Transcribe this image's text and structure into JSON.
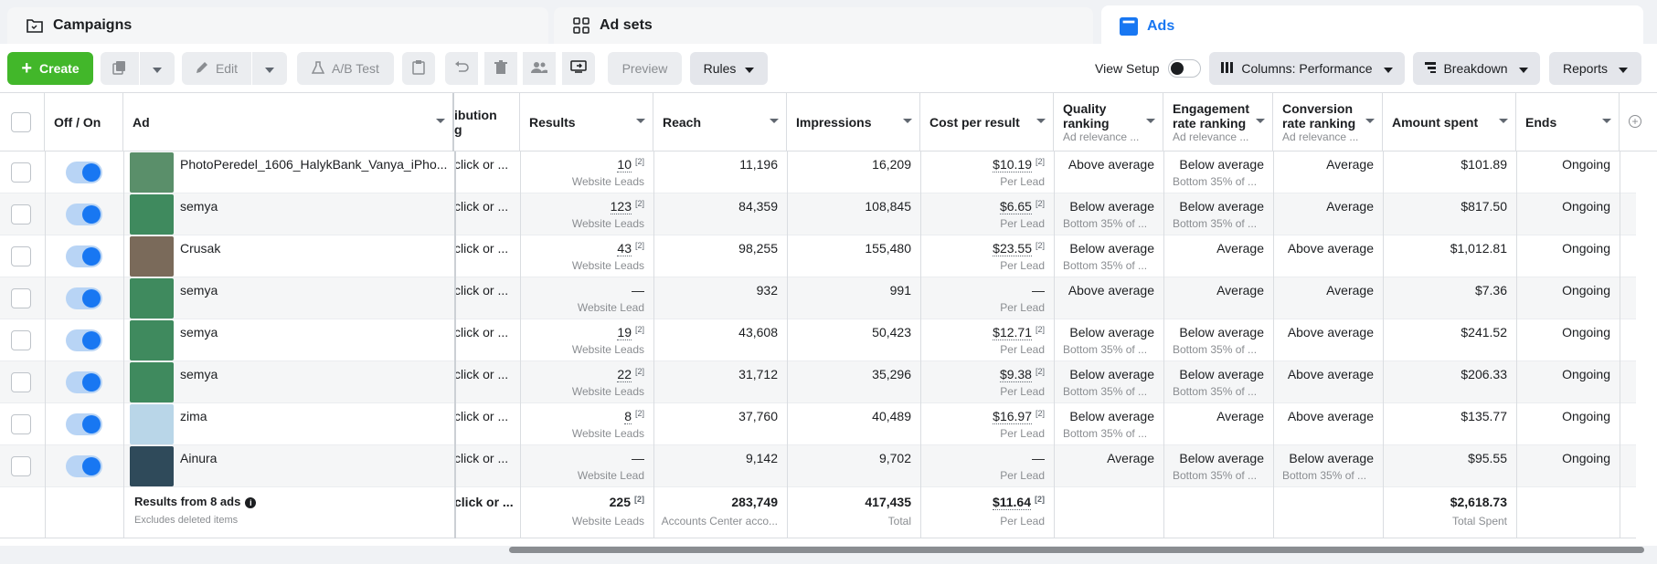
{
  "tabs": [
    {
      "label": "Campaigns",
      "icon": "folder-icon"
    },
    {
      "label": "Ad sets",
      "icon": "grid-icon"
    },
    {
      "label": "Ads",
      "icon": "ad-icon"
    }
  ],
  "toolbar": {
    "create": "Create",
    "edit": "Edit",
    "ab_test": "A/B Test",
    "preview": "Preview",
    "rules": "Rules",
    "view_setup": "View Setup",
    "columns": "Columns: Performance",
    "breakdown": "Breakdown",
    "reports": "Reports"
  },
  "headers": {
    "off_on": "Off / On",
    "ad": "Ad",
    "attribution_1": "ibution",
    "attribution_2": "g",
    "results": "Results",
    "reach": "Reach",
    "impressions": "Impressions",
    "cost": "Cost per result",
    "quality_1": "Quality",
    "quality_2": "ranking",
    "quality_sub": "Ad relevance ...",
    "engagement_1": "Engagement",
    "engagement_2": "rate ranking",
    "engagement_sub": "Ad relevance ...",
    "conversion_1": "Conversion",
    "conversion_2": "rate ranking",
    "conversion_sub": "Ad relevance ...",
    "amount": "Amount spent",
    "ends": "Ends"
  },
  "rows": [
    {
      "name": "PhotoPeredel_1606_HalykBank_Vanya_iPho...",
      "attribution": "click or ...",
      "results": "10",
      "results_sub": "Website Leads",
      "reach": "11,196",
      "impressions": "16,209",
      "cost": "$10.19",
      "cost_sub": "Per Lead",
      "quality": "Above average",
      "quality_sub": "",
      "engagement": "Below average",
      "engagement_sub": "Bottom 35% of ...",
      "conversion": "Average",
      "conversion_sub": "",
      "amount": "$101.89",
      "ends": "Ongoing",
      "thumb": "#5a8f6a"
    },
    {
      "name": "semya",
      "attribution": "click or ...",
      "results": "123",
      "results_sub": "Website Leads",
      "reach": "84,359",
      "impressions": "108,845",
      "cost": "$6.65",
      "cost_sub": "Per Lead",
      "quality": "Below average",
      "quality_sub": "Bottom 35% of ...",
      "engagement": "Below average",
      "engagement_sub": "Bottom 35% of ...",
      "conversion": "Average",
      "conversion_sub": "",
      "amount": "$817.50",
      "ends": "Ongoing",
      "thumb": "#3f8a5e"
    },
    {
      "name": "Crusak",
      "attribution": "click or ...",
      "results": "43",
      "results_sub": "Website Leads",
      "reach": "98,255",
      "impressions": "155,480",
      "cost": "$23.55",
      "cost_sub": "Per Lead",
      "quality": "Below average",
      "quality_sub": "Bottom 35% of ...",
      "engagement": "Average",
      "engagement_sub": "",
      "conversion": "Above average",
      "conversion_sub": "",
      "amount": "$1,012.81",
      "ends": "Ongoing",
      "thumb": "#7a6a5a"
    },
    {
      "name": "semya",
      "attribution": "click or ...",
      "results": "—",
      "results_sub": "Website Lead",
      "reach": "932",
      "impressions": "991",
      "cost": "—",
      "cost_sub": "Per Lead",
      "quality": "Above average",
      "quality_sub": "",
      "engagement": "Average",
      "engagement_sub": "",
      "conversion": "Average",
      "conversion_sub": "",
      "amount": "$7.36",
      "ends": "Ongoing",
      "thumb": "#3f8a5e"
    },
    {
      "name": "semya",
      "attribution": "click or ...",
      "results": "19",
      "results_sub": "Website Leads",
      "reach": "43,608",
      "impressions": "50,423",
      "cost": "$12.71",
      "cost_sub": "Per Lead",
      "quality": "Below average",
      "quality_sub": "Bottom 35% of ...",
      "engagement": "Below average",
      "engagement_sub": "Bottom 35% of ...",
      "conversion": "Above average",
      "conversion_sub": "",
      "amount": "$241.52",
      "ends": "Ongoing",
      "thumb": "#3f8a5e"
    },
    {
      "name": "semya",
      "attribution": "click or ...",
      "results": "22",
      "results_sub": "Website Leads",
      "reach": "31,712",
      "impressions": "35,296",
      "cost": "$9.38",
      "cost_sub": "Per Lead",
      "quality": "Below average",
      "quality_sub": "Bottom 35% of ...",
      "engagement": "Below average",
      "engagement_sub": "Bottom 35% of ...",
      "conversion": "Above average",
      "conversion_sub": "",
      "amount": "$206.33",
      "ends": "Ongoing",
      "thumb": "#3f8a5e"
    },
    {
      "name": "zima",
      "attribution": "click or ...",
      "results": "8",
      "results_sub": "Website Leads",
      "reach": "37,760",
      "impressions": "40,489",
      "cost": "$16.97",
      "cost_sub": "Per Lead",
      "quality": "Below average",
      "quality_sub": "Bottom 35% of ...",
      "engagement": "Average",
      "engagement_sub": "",
      "conversion": "Above average",
      "conversion_sub": "",
      "amount": "$135.77",
      "ends": "Ongoing",
      "thumb": "#b9d6e8"
    },
    {
      "name": "Ainura",
      "attribution": "click or ...",
      "results": "—",
      "results_sub": "Website Lead",
      "reach": "9,142",
      "impressions": "9,702",
      "cost": "—",
      "cost_sub": "Per Lead",
      "quality": "Average",
      "quality_sub": "",
      "engagement": "Below average",
      "engagement_sub": "Bottom 35% of ...",
      "conversion": "Below average",
      "conversion_sub": "Bottom 35% of ...",
      "amount": "$95.55",
      "ends": "Ongoing",
      "thumb": "#2f4a5a"
    }
  ],
  "footer": {
    "label": "Results from 8 ads",
    "sub": "Excludes deleted items",
    "attribution": "click or ...",
    "results": "225",
    "results_sub": "Website Leads",
    "reach": "283,749",
    "reach_sub": "Accounts Center acco...",
    "impressions": "417,435",
    "impressions_sub": "Total",
    "cost": "$11.64",
    "cost_sub": "Per Lead",
    "amount": "$2,618.73",
    "amount_sub": "Total Spent"
  },
  "superscript": "[2]",
  "colors": {
    "accent": "#1877f2",
    "create": "#42b72a"
  }
}
